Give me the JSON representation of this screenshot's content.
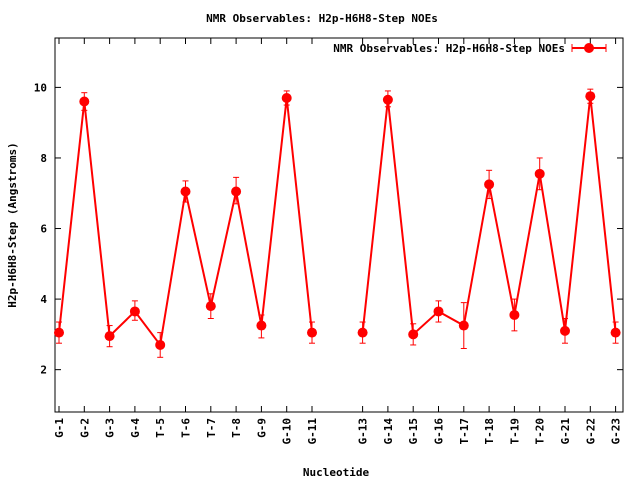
{
  "chart_data": {
    "type": "line",
    "title": "NMR Observables: H2p-H6H8-Step NOEs",
    "xlabel": "Nucleotide",
    "ylabel": "H2p-H6H8-Step (Angstroms)",
    "ylim": [
      0.8,
      11.4
    ],
    "yticks": [
      2,
      4,
      6,
      8,
      10
    ],
    "legend_position": "top-right",
    "grid": false,
    "categories": [
      "G-1",
      "G-2",
      "G-3",
      "G-4",
      "T-5",
      "T-6",
      "T-7",
      "T-8",
      "G-9",
      "G-10",
      "G-11",
      "G-13",
      "G-14",
      "G-15",
      "G-16",
      "T-17",
      "T-18",
      "T-19",
      "T-20",
      "G-21",
      "G-22",
      "G-23"
    ],
    "x": [
      1,
      2,
      3,
      4,
      5,
      6,
      7,
      8,
      9,
      10,
      11,
      13,
      14,
      15,
      16,
      17,
      18,
      19,
      20,
      21,
      22,
      23
    ],
    "series": [
      {
        "name": "NMR Observables: H2p-H6H8-Step NOEs",
        "color": "#ff0000",
        "segments": [
          [
            0,
            10
          ],
          [
            11,
            21
          ]
        ],
        "values": [
          3.05,
          9.6,
          2.95,
          3.65,
          2.7,
          7.05,
          3.8,
          7.05,
          3.25,
          9.7,
          3.05,
          3.05,
          9.65,
          3.0,
          3.65,
          3.25,
          7.25,
          3.55,
          7.55,
          3.1,
          9.75,
          3.05
        ],
        "err_low": [
          2.75,
          9.35,
          2.65,
          3.4,
          2.35,
          6.75,
          3.45,
          6.7,
          2.9,
          9.5,
          2.75,
          2.75,
          9.45,
          2.7,
          3.35,
          2.6,
          6.85,
          3.1,
          7.1,
          2.75,
          9.55,
          2.75
        ],
        "err_high": [
          3.35,
          9.85,
          3.25,
          3.95,
          3.05,
          7.35,
          4.15,
          7.45,
          3.55,
          9.9,
          3.35,
          3.35,
          9.9,
          3.3,
          3.95,
          3.9,
          7.65,
          4.0,
          8.0,
          3.45,
          9.95,
          3.35
        ]
      }
    ]
  }
}
